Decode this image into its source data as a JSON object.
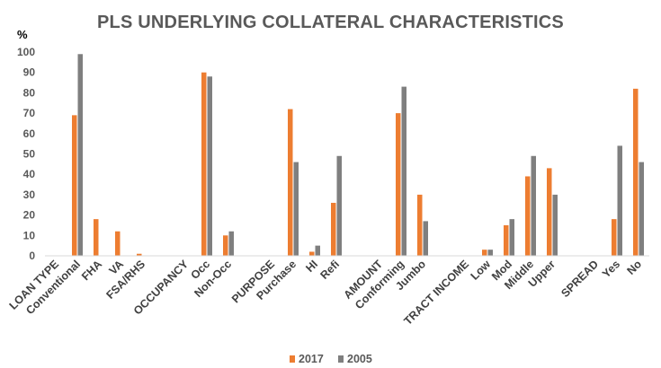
{
  "chart_data": {
    "type": "bar",
    "title": "PLS UNDERLYING COLLATERAL CHARACTERISTICS",
    "ylabel": "%",
    "xlabel": "",
    "ylim": [
      0,
      100
    ],
    "yticks": [
      "0",
      "10",
      "20",
      "30",
      "40",
      "50",
      "60",
      "70",
      "80",
      "90",
      "100"
    ],
    "grid": false,
    "legend_position": "bottom",
    "categories": [
      "LOAN TYPE",
      "Conventional",
      "FHA",
      "VA",
      "FSA/RHS",
      "",
      "OCCUPANCY",
      "Occ",
      "Non-Occ",
      "",
      "PURPOSE",
      "Purchase",
      "HI",
      "Refi",
      "",
      "AMOUNT",
      "Conforming",
      "Jumbo",
      "",
      "TRACT INCOME",
      "Low",
      "Mod",
      "Middle",
      "Upper",
      "",
      "SPREAD",
      "Yes",
      "No"
    ],
    "series": [
      {
        "name": "2017",
        "color": "#ED7D31",
        "values": [
          null,
          69,
          18,
          12,
          1,
          null,
          null,
          90,
          10,
          null,
          null,
          72,
          2,
          26,
          null,
          null,
          70,
          30,
          null,
          null,
          3,
          15,
          39,
          43,
          null,
          null,
          18,
          82
        ]
      },
      {
        "name": "2005",
        "color": "#7F7F7F",
        "values": [
          null,
          99,
          null,
          null,
          null,
          null,
          null,
          88,
          12,
          null,
          null,
          46,
          5,
          49,
          null,
          null,
          83,
          17,
          null,
          null,
          3,
          18,
          49,
          30,
          null,
          null,
          54,
          46
        ]
      }
    ]
  }
}
